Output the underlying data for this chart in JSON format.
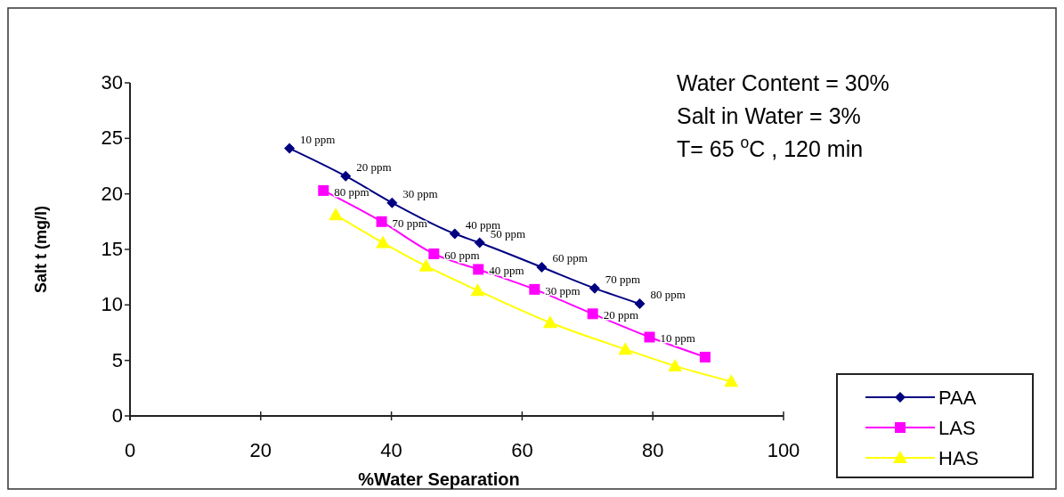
{
  "chart_data": {
    "type": "line",
    "xlabel": "%Water Separation",
    "ylabel": "Salt t (mg/l)",
    "xlim": [
      0,
      100
    ],
    "xticks": [
      0,
      20,
      40,
      60,
      80,
      100
    ],
    "ylim": [
      0,
      30
    ],
    "yticks": [
      0,
      5,
      10,
      15,
      20,
      25,
      30
    ],
    "grid": false,
    "legend": "bottom right",
    "line_style": "solid",
    "series": [
      {
        "name": "PAA",
        "color": "#000080",
        "marker": "diamond",
        "x": [
          24.4,
          33.0,
          40.1,
          49.7,
          53.5,
          63.0,
          71.1,
          78.0
        ],
        "values": [
          24.1,
          21.6,
          19.2,
          16.4,
          15.6,
          13.4,
          11.5,
          10.1
        ]
      },
      {
        "name": "LAS",
        "color": "#ff00ff",
        "marker": "square",
        "x": [
          29.6,
          38.5,
          46.5,
          53.3,
          61.9,
          70.8,
          79.5,
          88.0
        ],
        "values": [
          20.3,
          17.5,
          14.6,
          13.2,
          11.4,
          9.2,
          7.1,
          5.3
        ]
      },
      {
        "name": "HAS",
        "color": "#ffff00",
        "marker": "triangle",
        "x": [
          31.5,
          38.7,
          45.3,
          53.2,
          64.3,
          75.8,
          83.4,
          92.0
        ],
        "values": [
          18.1,
          15.6,
          13.5,
          11.3,
          8.4,
          6.0,
          4.5,
          3.1
        ]
      }
    ],
    "annotations": [
      "Water  Content  = 30%",
      "Salt in Water = 3%",
      "T= 65 $^{o}$C , 120 min",
      {
        "text": "10 ppm",
        "x": 24.4,
        "y": 24.1
      },
      {
        "text": "20 ppm",
        "x": 33.0,
        "y": 21.6
      },
      {
        "text": "30 ppm",
        "x": 40.1,
        "y": 19.2
      },
      {
        "text": "40 ppm",
        "x": 49.7,
        "y": 16.4
      },
      {
        "text": "50 ppm",
        "x": 53.5,
        "y": 15.6
      },
      {
        "text": "60 ppm",
        "x": 63.0,
        "y": 13.4
      },
      {
        "text": "70 ppm",
        "x": 71.1,
        "y": 11.5
      },
      {
        "text": "80 ppm",
        "x": 78.0,
        "y": 10.1
      },
      {
        "text": "80 ppm",
        "x": 29.6,
        "y": 20.3
      },
      {
        "text": "70 ppm",
        "x": 38.5,
        "y": 17.5
      },
      {
        "text": "60 ppm",
        "x": 46.5,
        "y": 14.6
      },
      {
        "text": "40 ppm",
        "x": 53.3,
        "y": 13.2
      },
      {
        "text": "30 ppm",
        "x": 61.9,
        "y": 11.4
      },
      {
        "text": "20 ppm",
        "x": 70.8,
        "y": 9.2
      },
      {
        "text": "10 ppm",
        "x": 79.5,
        "y": 7.1
      }
    ]
  }
}
